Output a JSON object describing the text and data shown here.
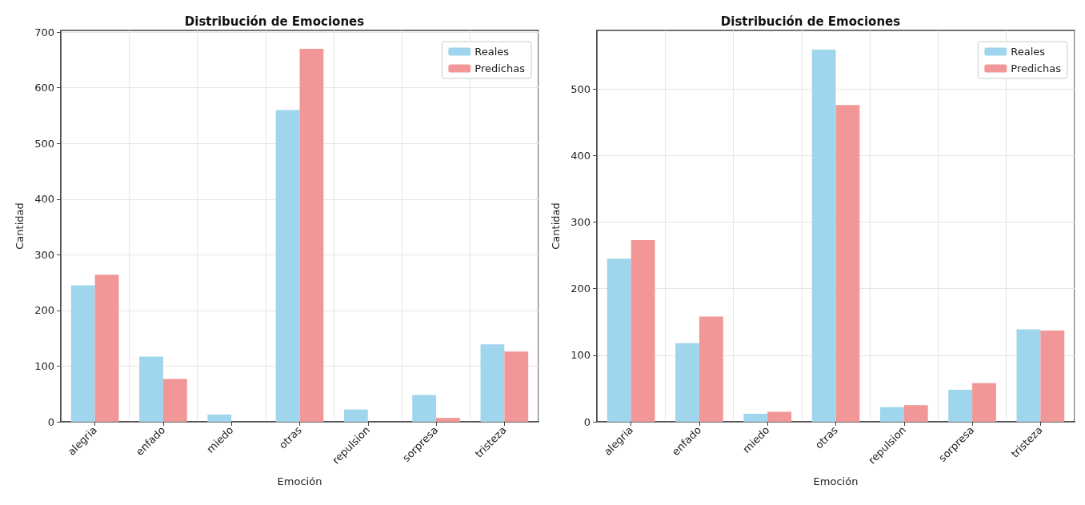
{
  "chart_data": [
    {
      "type": "bar",
      "title": "Distribución de Emociones",
      "xlabel": "Emoción",
      "ylabel": "Cantidad",
      "categories": [
        "alegria",
        "enfado",
        "miedo",
        "otras",
        "repulsion",
        "sorpresa",
        "tristeza"
      ],
      "series": [
        {
          "name": "Reales",
          "color": "#a0d6ed",
          "values": [
            245,
            117,
            13,
            560,
            22,
            48,
            139
          ]
        },
        {
          "name": "Predichas",
          "color": "#f19797",
          "values": [
            264,
            77,
            0,
            670,
            0,
            7,
            126
          ]
        }
      ],
      "ylim": [
        0,
        703
      ],
      "yticks": [
        0,
        100,
        200,
        300,
        400,
        500,
        600,
        700
      ],
      "grid": true,
      "legend": "top right"
    },
    {
      "type": "bar",
      "title": "Distribución de Emociones",
      "xlabel": "Emoción",
      "ylabel": "Cantidad",
      "categories": [
        "alegria",
        "enfado",
        "miedo",
        "otras",
        "repulsion",
        "sorpresa",
        "tristeza"
      ],
      "series": [
        {
          "name": "Reales",
          "color": "#a0d6ed",
          "values": [
            245,
            118,
            12,
            559,
            22,
            48,
            139
          ]
        },
        {
          "name": "Predichas",
          "color": "#f19797",
          "values": [
            273,
            158,
            15,
            476,
            25,
            58,
            137
          ]
        }
      ],
      "ylim": [
        0,
        588
      ],
      "yticks": [
        0,
        100,
        200,
        300,
        400,
        500
      ],
      "grid": true,
      "legend": "top right"
    }
  ]
}
